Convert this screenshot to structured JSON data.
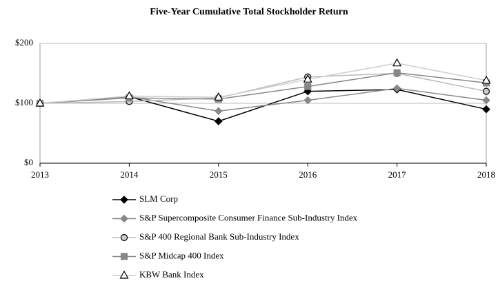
{
  "chart_data": {
    "type": "line",
    "title": "Five-Year Cumulative Total Stockholder Return",
    "categories": [
      "2013",
      "2014",
      "2015",
      "2016",
      "2017",
      "2018"
    ],
    "series": [
      {
        "name": "SLM Corp",
        "color": "#000000",
        "marker": "diamond",
        "values": [
          100,
          111,
          70,
          120,
          123,
          90
        ]
      },
      {
        "name": "S&P Supercomposite Consumer Finance Sub-Industry Index",
        "color": "#888888",
        "marker": "diamond",
        "values": [
          100,
          111,
          87,
          105,
          125,
          105
        ]
      },
      {
        "name": "S&P 400 Regional Bank Sub-Industry Index",
        "color": "#bbbbbb",
        "marker": "circle",
        "values": [
          100,
          103,
          109,
          144,
          150,
          120
        ]
      },
      {
        "name": "S&P Midcap 400 Index",
        "color": "#888888",
        "marker": "square",
        "values": [
          100,
          109,
          107,
          128,
          151,
          134
        ]
      },
      {
        "name": "KBW Bank Index",
        "color": "#cccccc",
        "marker": "triangle",
        "values": [
          100,
          112,
          110,
          140,
          167,
          138
        ]
      }
    ],
    "ylim": [
      0,
      200
    ],
    "yticks": [
      {
        "value": 0,
        "label": "$0"
      },
      {
        "value": 100,
        "label": "$100"
      },
      {
        "value": 200,
        "label": "$200"
      }
    ],
    "grid": true,
    "legend": "bottom"
  }
}
